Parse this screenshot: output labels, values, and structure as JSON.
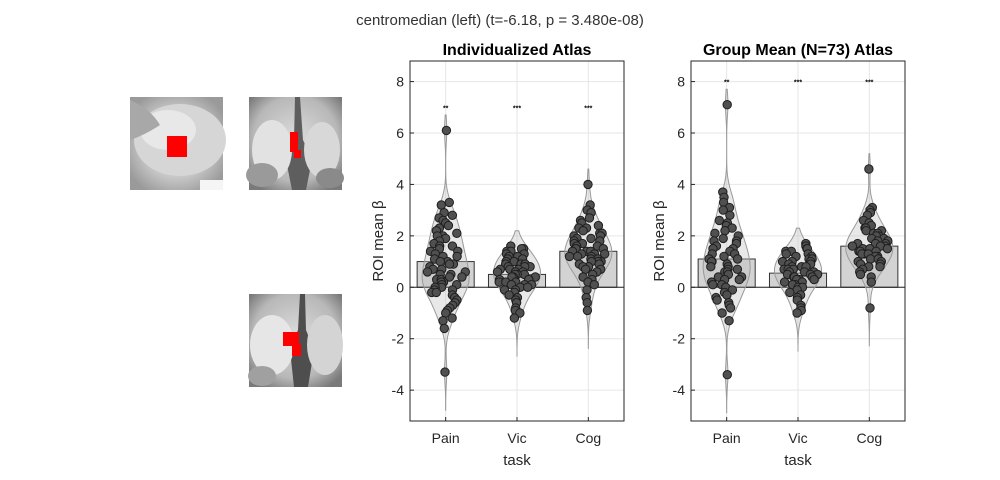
{
  "suptitle": "centromedian (left) (t=-6.18, p = 3.480e-08)",
  "colors": {
    "roi": "#ff0000",
    "bar": "#d3d3d3",
    "point": "#505050",
    "violin": "#bdbdbd"
  },
  "chart_data": [
    {
      "type": "bar",
      "title": "Individualized Atlas",
      "xlabel": "task",
      "ylabel": "ROI mean β",
      "categories": [
        "Pain",
        "Vic",
        "Cog"
      ],
      "values": [
        1.0,
        0.5,
        1.4
      ],
      "significance": [
        "**",
        "***",
        "***"
      ],
      "ylim": [
        -5.2,
        8.8
      ],
      "yticks": [
        -4,
        -2,
        0,
        2,
        4,
        6,
        8
      ],
      "grid": true,
      "points": {
        "Pain": [
          6.1,
          3.3,
          3.2,
          2.9,
          2.8,
          2.7,
          2.6,
          2.5,
          2.4,
          2.3,
          2.2,
          2.1,
          2.0,
          2.0,
          1.9,
          1.8,
          1.7,
          1.6,
          1.6,
          1.5,
          1.4,
          1.4,
          1.3,
          1.2,
          1.2,
          1.1,
          1.0,
          1.0,
          0.9,
          0.9,
          0.8,
          0.7,
          0.7,
          0.6,
          0.6,
          0.5,
          0.5,
          0.4,
          0.4,
          0.3,
          0.3,
          0.2,
          0.2,
          0.1,
          0.1,
          0.0,
          0.0,
          -0.1,
          -0.1,
          -0.2,
          -0.2,
          -0.3,
          -0.4,
          -0.5,
          -0.6,
          -0.7,
          -0.8,
          -0.9,
          -1.0,
          -1.2,
          -1.3,
          -1.6,
          -3.3
        ],
        "Vic": [
          1.6,
          1.5,
          1.5,
          1.4,
          1.4,
          1.3,
          1.3,
          1.2,
          1.2,
          1.1,
          1.1,
          1.0,
          1.0,
          0.9,
          0.9,
          0.9,
          0.8,
          0.8,
          0.8,
          0.7,
          0.7,
          0.7,
          0.6,
          0.6,
          0.6,
          0.5,
          0.5,
          0.5,
          0.4,
          0.4,
          0.4,
          0.3,
          0.3,
          0.3,
          0.2,
          0.2,
          0.2,
          0.1,
          0.1,
          0.1,
          0.0,
          0.0,
          -0.1,
          -0.1,
          -0.2,
          -0.3,
          -0.4,
          -0.5,
          -0.6,
          -0.8,
          -0.9,
          -1.0,
          -1.2
        ],
        "Cog": [
          4.0,
          3.2,
          3.0,
          2.9,
          2.7,
          2.6,
          2.5,
          2.4,
          2.3,
          2.3,
          2.2,
          2.1,
          2.1,
          2.0,
          2.0,
          1.9,
          1.9,
          1.8,
          1.8,
          1.7,
          1.7,
          1.6,
          1.6,
          1.5,
          1.5,
          1.5,
          1.4,
          1.4,
          1.4,
          1.3,
          1.3,
          1.3,
          1.2,
          1.2,
          1.2,
          1.1,
          1.1,
          1.0,
          1.0,
          1.0,
          0.9,
          0.9,
          0.8,
          0.8,
          0.7,
          0.7,
          0.6,
          0.5,
          0.4,
          0.3,
          0.2,
          0.1,
          -0.1,
          -0.4,
          -0.6,
          -0.9
        ]
      }
    },
    {
      "type": "bar",
      "title": "Group Mean (N=73) Atlas",
      "xlabel": "task",
      "ylabel": "ROI mean β",
      "categories": [
        "Pain",
        "Vic",
        "Cog"
      ],
      "values": [
        1.1,
        0.55,
        1.6
      ],
      "significance": [
        "**",
        "***",
        "***"
      ],
      "ylim": [
        -5.2,
        8.8
      ],
      "yticks": [
        -4,
        -2,
        0,
        2,
        4,
        6,
        8
      ],
      "grid": true,
      "points": {
        "Pain": [
          7.1,
          3.7,
          3.5,
          3.3,
          3.1,
          3.0,
          2.8,
          2.6,
          2.5,
          2.4,
          2.3,
          2.2,
          2.1,
          2.0,
          1.9,
          1.8,
          1.8,
          1.7,
          1.6,
          1.5,
          1.5,
          1.4,
          1.3,
          1.3,
          1.2,
          1.1,
          1.1,
          1.0,
          1.0,
          0.9,
          0.8,
          0.8,
          0.7,
          0.7,
          0.6,
          0.6,
          0.5,
          0.4,
          0.4,
          0.3,
          0.3,
          0.2,
          0.1,
          0.1,
          0.0,
          -0.1,
          -0.2,
          -0.3,
          -0.4,
          -0.5,
          -0.6,
          -0.7,
          -0.8,
          -1.0,
          -1.3,
          -3.4
        ],
        "Vic": [
          1.7,
          1.6,
          1.5,
          1.5,
          1.4,
          1.4,
          1.3,
          1.3,
          1.2,
          1.2,
          1.1,
          1.1,
          1.0,
          1.0,
          1.0,
          0.9,
          0.9,
          0.8,
          0.8,
          0.8,
          0.7,
          0.7,
          0.7,
          0.6,
          0.6,
          0.6,
          0.5,
          0.5,
          0.5,
          0.4,
          0.4,
          0.4,
          0.3,
          0.3,
          0.3,
          0.2,
          0.2,
          0.1,
          0.1,
          0.0,
          0.0,
          -0.1,
          -0.2,
          -0.3,
          -0.4,
          -0.5,
          -0.7,
          -0.8,
          -0.9,
          -1.0
        ],
        "Cog": [
          4.6,
          3.1,
          3.0,
          2.9,
          2.8,
          2.6,
          2.5,
          2.4,
          2.3,
          2.3,
          2.2,
          2.2,
          2.1,
          2.1,
          2.0,
          2.0,
          1.9,
          1.9,
          1.8,
          1.8,
          1.7,
          1.7,
          1.7,
          1.6,
          1.6,
          1.6,
          1.5,
          1.5,
          1.5,
          1.4,
          1.4,
          1.4,
          1.3,
          1.3,
          1.3,
          1.2,
          1.2,
          1.1,
          1.1,
          1.0,
          1.0,
          0.9,
          0.9,
          0.8,
          0.8,
          0.7,
          0.6,
          0.5,
          0.4,
          0.2,
          -0.8
        ]
      }
    }
  ]
}
